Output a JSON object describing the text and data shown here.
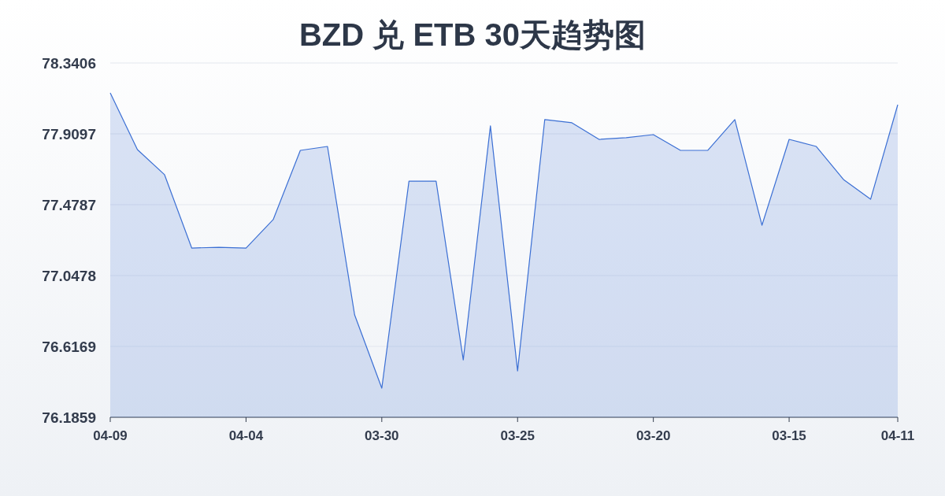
{
  "chart_data": {
    "type": "area",
    "title": "BZD 兑 ETB 30天趋势图",
    "categories": [
      "04-09",
      null,
      null,
      null,
      null,
      "04-04",
      null,
      null,
      null,
      null,
      "03-30",
      null,
      null,
      null,
      null,
      "03-25",
      null,
      null,
      null,
      null,
      "03-20",
      null,
      null,
      null,
      null,
      "03-15",
      null,
      null,
      null,
      "04-11"
    ],
    "series": [
      {
        "color": "#3b6fd4",
        "values": [
          78.159,
          77.814,
          77.661,
          77.215,
          77.22,
          77.215,
          77.388,
          77.809,
          77.833,
          76.808,
          76.363,
          77.622,
          77.622,
          76.535,
          77.958,
          76.468,
          77.996,
          77.977,
          77.876,
          77.886,
          77.905,
          77.809,
          77.809,
          77.996,
          77.354,
          77.876,
          77.833,
          77.632,
          77.512,
          78.087
        ]
      }
    ],
    "ylim": [
      76.1859,
      78.3406
    ],
    "yticks": [
      76.1859,
      76.6169,
      77.0478,
      77.4787,
      77.9097,
      78.3406
    ],
    "grid": "y"
  }
}
